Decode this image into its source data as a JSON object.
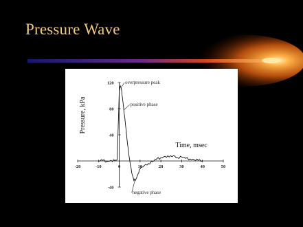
{
  "slide": {
    "title": "Pressure Wave",
    "colors": {
      "background": "#000000",
      "title": "#f3c97a",
      "comet_core": "#ffb347",
      "comet_glow": "#c04a00",
      "stripe_start": "#1a1a7a",
      "stripe_end": "#ff8c1a"
    }
  },
  "chart_data": {
    "type": "line",
    "title": "",
    "xlabel": "Time, msec",
    "ylabel": "Pressure, kPa",
    "xlim": [
      -20,
      50
    ],
    "ylim": [
      -40,
      120
    ],
    "x_ticks": [
      -20,
      -10,
      0,
      10,
      20,
      30,
      40,
      50
    ],
    "y_ticks": [
      -40,
      40,
      80,
      120
    ],
    "grid": false,
    "legend": "none",
    "series": [
      {
        "color": "#111111",
        "x": [
          -10,
          -8,
          -6,
          -4,
          -2,
          -1,
          0,
          0.5,
          1,
          1.5,
          2,
          3,
          4,
          5,
          6,
          7,
          8,
          9,
          10,
          12,
          14,
          16,
          18,
          20,
          22,
          24,
          26,
          28,
          30,
          32,
          34,
          36,
          38,
          40
        ],
        "y": [
          0,
          1,
          -1,
          1,
          0,
          2,
          108,
          115,
          110,
          98,
          85,
          55,
          25,
          2,
          -18,
          -30,
          -28,
          -20,
          -12,
          -7,
          -4,
          -1,
          3,
          5,
          7,
          6,
          8,
          5,
          6,
          4,
          3,
          2,
          1,
          0
        ]
      }
    ],
    "annotations": [
      {
        "text": "overpressure peak",
        "x": 1,
        "y": 115
      },
      {
        "text": "positive phase",
        "x": 2.5,
        "y": 80
      },
      {
        "text": "negative phase",
        "x": 7,
        "y": -28
      }
    ]
  }
}
